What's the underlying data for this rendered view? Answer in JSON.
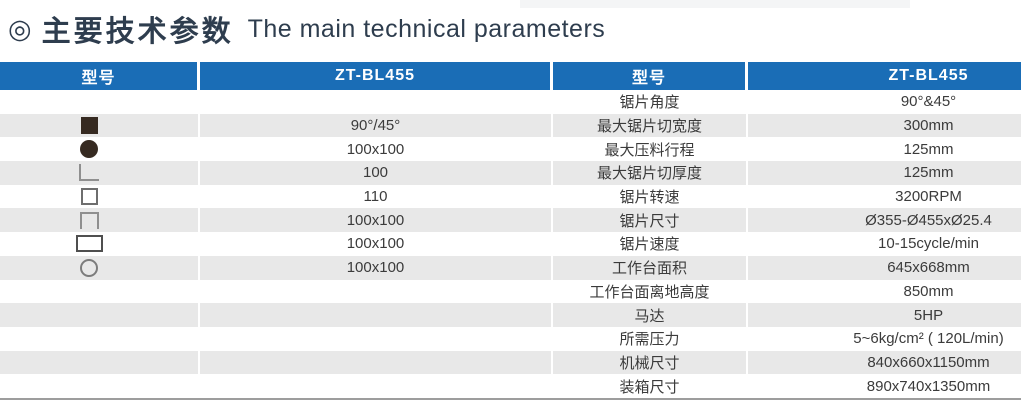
{
  "title": {
    "bullet": "◎",
    "zh": "主要技术参数",
    "en": "The main technical parameters"
  },
  "colors": {
    "header_blue": "#1a6db6",
    "row_gray": "#e8e8e8",
    "title_text": "#2e3d4e",
    "bottom_line": "#9d9d9d"
  },
  "table": {
    "header": [
      "型号",
      "ZT-BL455",
      "型号",
      "ZT-BL455"
    ],
    "rows": [
      {
        "icon": "",
        "capacity": "",
        "param": "锯片角度",
        "value": "90°&45°"
      },
      {
        "icon": "filled-square",
        "capacity": "90°/45°",
        "param": "最大锯片切宽度",
        "value": "300mm"
      },
      {
        "icon": "filled-circle",
        "capacity": "100x100",
        "param": "最大压料行程",
        "value": "125mm"
      },
      {
        "icon": "angle",
        "capacity": "100",
        "param": "最大锯片切厚度",
        "value": "125mm"
      },
      {
        "icon": "hollow-square",
        "capacity": "110",
        "param": "锯片转速",
        "value": "3200RPM"
      },
      {
        "icon": "channel",
        "capacity": "100x100",
        "param": "锯片尺寸",
        "value": "Ø355-Ø455xØ25.4"
      },
      {
        "icon": "hollow-rect",
        "capacity": "100x100",
        "param": "锯片速度",
        "value": "10-15cycle/min"
      },
      {
        "icon": "hollow-circle",
        "capacity": "100x100",
        "param": "工作台面积",
        "value": "645x668mm"
      },
      {
        "icon": "",
        "capacity": "",
        "param": "工作台面离地高度",
        "value": "850mm"
      },
      {
        "icon": "",
        "capacity": "",
        "param": "马达",
        "value": "5HP"
      },
      {
        "icon": "",
        "capacity": "",
        "param": "所需压力",
        "value": "5~6kg/cm² ( 120L/min)"
      },
      {
        "icon": "",
        "capacity": "",
        "param": "机械尺寸",
        "value": "840x660x1150mm"
      },
      {
        "icon": "",
        "capacity": "",
        "param": "装箱尺寸",
        "value": "890x740x1350mm"
      }
    ]
  }
}
